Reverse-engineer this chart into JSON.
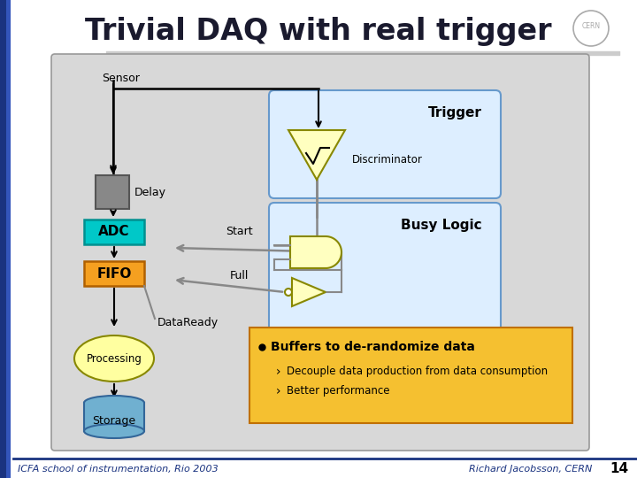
{
  "title": "Trivial DAQ with real trigger",
  "slide_bg": "#ffffff",
  "main_box_color": "#d8d8d8",
  "trigger_box_color": "#ddeeff",
  "busy_box_color": "#ddeeff",
  "note_box_color": "#f5c030",
  "adc_color": "#00c8c8",
  "fifo_color": "#f5a020",
  "delay_color": "#888888",
  "processing_color": "#ffffa0",
  "storage_color": "#70b0d0",
  "discriminator_color": "#ffffc0",
  "gate_color": "#ffffc0",
  "footer_left": "ICFA school of instrumentation, Rio 2003",
  "footer_right": "Richard Jacobsson, CERN",
  "page_number": "14",
  "bullet_title": "Buffers to de-randomize data",
  "bullet_items": [
    "Decouple data production from data consumption",
    "Better performance"
  ],
  "title_color": "#1a1a2e",
  "blue_bar1": "#1a3380",
  "blue_bar2": "#3355bb"
}
